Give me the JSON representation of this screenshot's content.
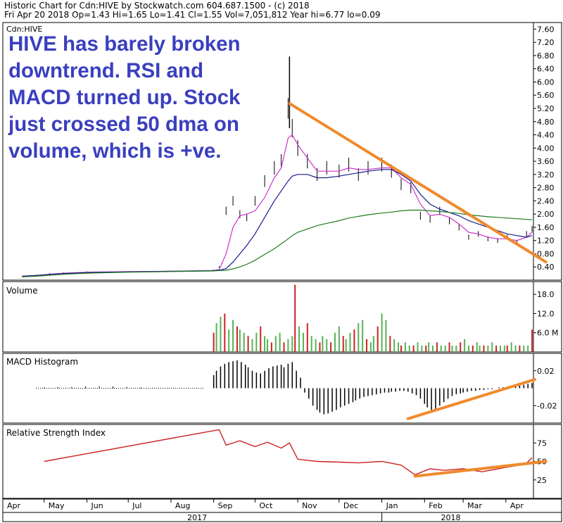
{
  "header": {
    "line1": "Historic Chart for Cdn:HIVE by Stockwatch.com 604.687.1500 - (c) 2018",
    "line2": "Fri Apr 20 2018   Op=1.43  Hi=1.65  Lo=1.41  Cl=1.55  Vol=7,051,812  Year hi=6.77  lo=0.09"
  },
  "annotation": "HIVE has barely broken downtrend. RSI and MACD turned up. Stock just crossed 50 dma on volume, which is +ve.",
  "colors": {
    "price": "#000000",
    "ma_short": "#cc33cc",
    "ma_mid": "#1a1a8c",
    "ma_long": "#1e7a1e",
    "vol_up": "#55b355",
    "vol_down": "#cc2222",
    "rsi": "#cc2222",
    "trend": "#f08a2c",
    "annot_text": "#3a3fbf"
  },
  "chart_data": [
    {
      "type": "line",
      "panel": "price",
      "label": "Cdn:HIVE",
      "y_ticks": [
        "7.60",
        "7.20",
        "6.80",
        "6.40",
        "6.00",
        "5.60",
        "5.20",
        "4.80",
        "4.40",
        "4.00",
        "3.60",
        "3.20",
        "2.80",
        "2.40",
        "2.00",
        "1.60",
        "1.20",
        "0.80",
        "0.40"
      ],
      "ylim": [
        0.0,
        7.8
      ],
      "x": [
        "2017-04-15",
        "2017-04-25",
        "2017-05-05",
        "2017-05-15",
        "2017-06-01",
        "2017-07-01",
        "2017-08-01",
        "2017-08-20",
        "2017-09-01",
        "2017-09-05",
        "2017-09-10",
        "2017-09-15",
        "2017-09-20",
        "2017-09-25",
        "2017-10-01",
        "2017-10-08",
        "2017-10-15",
        "2017-10-20",
        "2017-10-25",
        "2017-10-28",
        "2017-11-01",
        "2017-11-08",
        "2017-11-15",
        "2017-11-22",
        "2017-12-01",
        "2017-12-08",
        "2017-12-15",
        "2017-12-22",
        "2018-01-01",
        "2018-01-08",
        "2018-01-15",
        "2018-01-22",
        "2018-01-29",
        "2018-02-05",
        "2018-02-12",
        "2018-02-19",
        "2018-02-26",
        "2018-03-05",
        "2018-03-12",
        "2018-03-19",
        "2018-03-26",
        "2018-04-02",
        "2018-04-09",
        "2018-04-16",
        "2018-04-20"
      ],
      "series": [
        {
          "name": "Close",
          "values": [
            0.1,
            0.15,
            0.2,
            0.22,
            0.25,
            0.26,
            0.27,
            0.28,
            0.3,
            0.4,
            2.1,
            2.4,
            2.0,
            1.9,
            2.4,
            3.0,
            3.4,
            3.6,
            5.2,
            4.6,
            4.0,
            3.6,
            3.2,
            3.4,
            3.3,
            3.5,
            3.2,
            3.4,
            3.5,
            3.3,
            2.9,
            2.8,
            1.95,
            1.85,
            2.1,
            1.8,
            1.6,
            1.3,
            1.4,
            1.25,
            1.2,
            1.3,
            1.15,
            1.4,
            1.55
          ]
        },
        {
          "name": "MA short",
          "values": [
            0.12,
            0.14,
            0.18,
            0.21,
            0.24,
            0.26,
            0.27,
            0.28,
            0.29,
            0.32,
            0.8,
            1.6,
            1.95,
            2.0,
            2.1,
            2.5,
            3.1,
            3.4,
            4.3,
            4.4,
            4.1,
            3.7,
            3.3,
            3.3,
            3.3,
            3.4,
            3.35,
            3.35,
            3.4,
            3.4,
            3.1,
            2.9,
            2.3,
            1.95,
            2.0,
            1.9,
            1.7,
            1.45,
            1.4,
            1.3,
            1.25,
            1.25,
            1.2,
            1.3,
            1.45
          ]
        },
        {
          "name": "MA mid",
          "values": [
            0.12,
            0.14,
            0.17,
            0.2,
            0.23,
            0.25,
            0.27,
            0.28,
            0.29,
            0.3,
            0.35,
            0.55,
            0.8,
            1.05,
            1.4,
            1.9,
            2.4,
            2.7,
            3.0,
            3.15,
            3.2,
            3.2,
            3.1,
            3.1,
            3.15,
            3.2,
            3.25,
            3.3,
            3.35,
            3.35,
            3.2,
            3.0,
            2.6,
            2.3,
            2.15,
            2.05,
            1.95,
            1.8,
            1.7,
            1.6,
            1.5,
            1.4,
            1.35,
            1.3,
            1.35
          ]
        },
        {
          "name": "MA long",
          "values": [
            0.1,
            0.12,
            0.15,
            0.18,
            0.21,
            0.24,
            0.26,
            0.27,
            0.28,
            0.29,
            0.3,
            0.34,
            0.4,
            0.48,
            0.6,
            0.78,
            0.95,
            1.1,
            1.25,
            1.35,
            1.45,
            1.55,
            1.65,
            1.72,
            1.8,
            1.88,
            1.93,
            1.98,
            2.03,
            2.06,
            2.1,
            2.12,
            2.12,
            2.1,
            2.08,
            2.05,
            2.02,
            1.98,
            1.95,
            1.92,
            1.9,
            1.88,
            1.86,
            1.84,
            1.83
          ]
        }
      ],
      "trendline": {
        "from": [
          "2017-10-26",
          5.35
        ],
        "to": [
          "2018-04-30",
          0.55
        ]
      }
    },
    {
      "type": "bar",
      "panel": "volume",
      "title": "Volume",
      "y_ticks": [
        "18.0",
        "12.0",
        "6.0 M"
      ],
      "ylim": [
        0,
        22
      ],
      "x_start": "2017-09-01",
      "x_end": "2018-04-20",
      "values": [
        6,
        9,
        11,
        12,
        7,
        10,
        8,
        7,
        6,
        5,
        4,
        6,
        8,
        5,
        4,
        3,
        5,
        6,
        3,
        4,
        5,
        21,
        8,
        6,
        9,
        5,
        4,
        3,
        5,
        4,
        3,
        6,
        8,
        5,
        4,
        6,
        7,
        9,
        10,
        4,
        3,
        5,
        8,
        12,
        10,
        5,
        4,
        3,
        2,
        3,
        2,
        2,
        3,
        2,
        2,
        3,
        2,
        3,
        2,
        2,
        3,
        2,
        2,
        3,
        4,
        2,
        2,
        3,
        2,
        2,
        2,
        3,
        2,
        2,
        2,
        2,
        3,
        2,
        2,
        2,
        2,
        7
      ]
    },
    {
      "type": "bar",
      "panel": "macd",
      "title": "MACD Histogram",
      "y_ticks": [
        "0.02",
        "-0.02"
      ],
      "ylim": [
        -0.04,
        0.04
      ],
      "x_start": "2017-09-01",
      "x_end": "2018-04-20",
      "values": [
        0.015,
        0.02,
        0.025,
        0.028,
        0.03,
        0.031,
        0.032,
        0.03,
        0.027,
        0.024,
        0.02,
        0.018,
        0.017,
        0.02,
        0.023,
        0.025,
        0.026,
        0.027,
        0.024,
        0.028,
        0.03,
        0.02,
        0.012,
        -0.005,
        -0.012,
        -0.02,
        -0.025,
        -0.028,
        -0.03,
        -0.029,
        -0.027,
        -0.025,
        -0.022,
        -0.02,
        -0.018,
        -0.016,
        -0.014,
        -0.012,
        -0.01,
        -0.009,
        -0.008,
        -0.007,
        -0.006,
        -0.005,
        -0.005,
        -0.004,
        -0.004,
        -0.003,
        -0.003,
        -0.004,
        -0.006,
        -0.008,
        -0.012,
        -0.018,
        -0.022,
        -0.025,
        -0.024,
        -0.02,
        -0.016,
        -0.012,
        -0.009,
        -0.007,
        -0.006,
        -0.005,
        -0.004,
        -0.003,
        -0.003,
        -0.002,
        -0.002,
        -0.001,
        -0.001,
        0.0,
        0.001,
        0.001,
        0.002,
        0.002,
        0.003,
        0.003,
        0.004,
        0.005,
        0.006
      ],
      "pre_values": [
        0.001,
        0.0012,
        0.0015,
        0.002,
        0.0022,
        0.002,
        0.0015,
        0.001,
        0.0005,
        0.0003,
        0.0002,
        0.0001
      ],
      "trendline": {
        "from": [
          "2018-01-20",
          -0.035
        ],
        "to": [
          "2018-04-22",
          0.01
        ]
      }
    },
    {
      "type": "line",
      "panel": "rsi",
      "title": "Relative Strength Index",
      "y_ticks": [
        "75",
        "50",
        "25"
      ],
      "ylim": [
        0,
        100
      ],
      "x": [
        "2017-05-01",
        "2017-09-05",
        "2017-09-10",
        "2017-09-20",
        "2017-10-01",
        "2017-10-10",
        "2017-10-20",
        "2017-10-26",
        "2017-11-01",
        "2017-11-15",
        "2017-12-01",
        "2017-12-15",
        "2018-01-01",
        "2018-01-15",
        "2018-01-25",
        "2018-02-05",
        "2018-02-15",
        "2018-03-01",
        "2018-03-15",
        "2018-04-01",
        "2018-04-15",
        "2018-04-20"
      ],
      "values": [
        50,
        93,
        72,
        78,
        70,
        76,
        68,
        75,
        53,
        50,
        49,
        48,
        50,
        45,
        32,
        40,
        38,
        40,
        36,
        42,
        46,
        55
      ],
      "trendline": {
        "from": [
          "2018-01-25",
          30
        ],
        "to": [
          "2018-04-30",
          50
        ]
      }
    }
  ],
  "x_axis": {
    "months": [
      "Apr",
      "May",
      "Jun",
      "Jul",
      "Aug",
      "Sep",
      "Oct",
      "Nov",
      "Dec",
      "Jan",
      "Feb",
      "Mar",
      "Apr"
    ],
    "years": [
      "2017",
      "2018"
    ]
  }
}
